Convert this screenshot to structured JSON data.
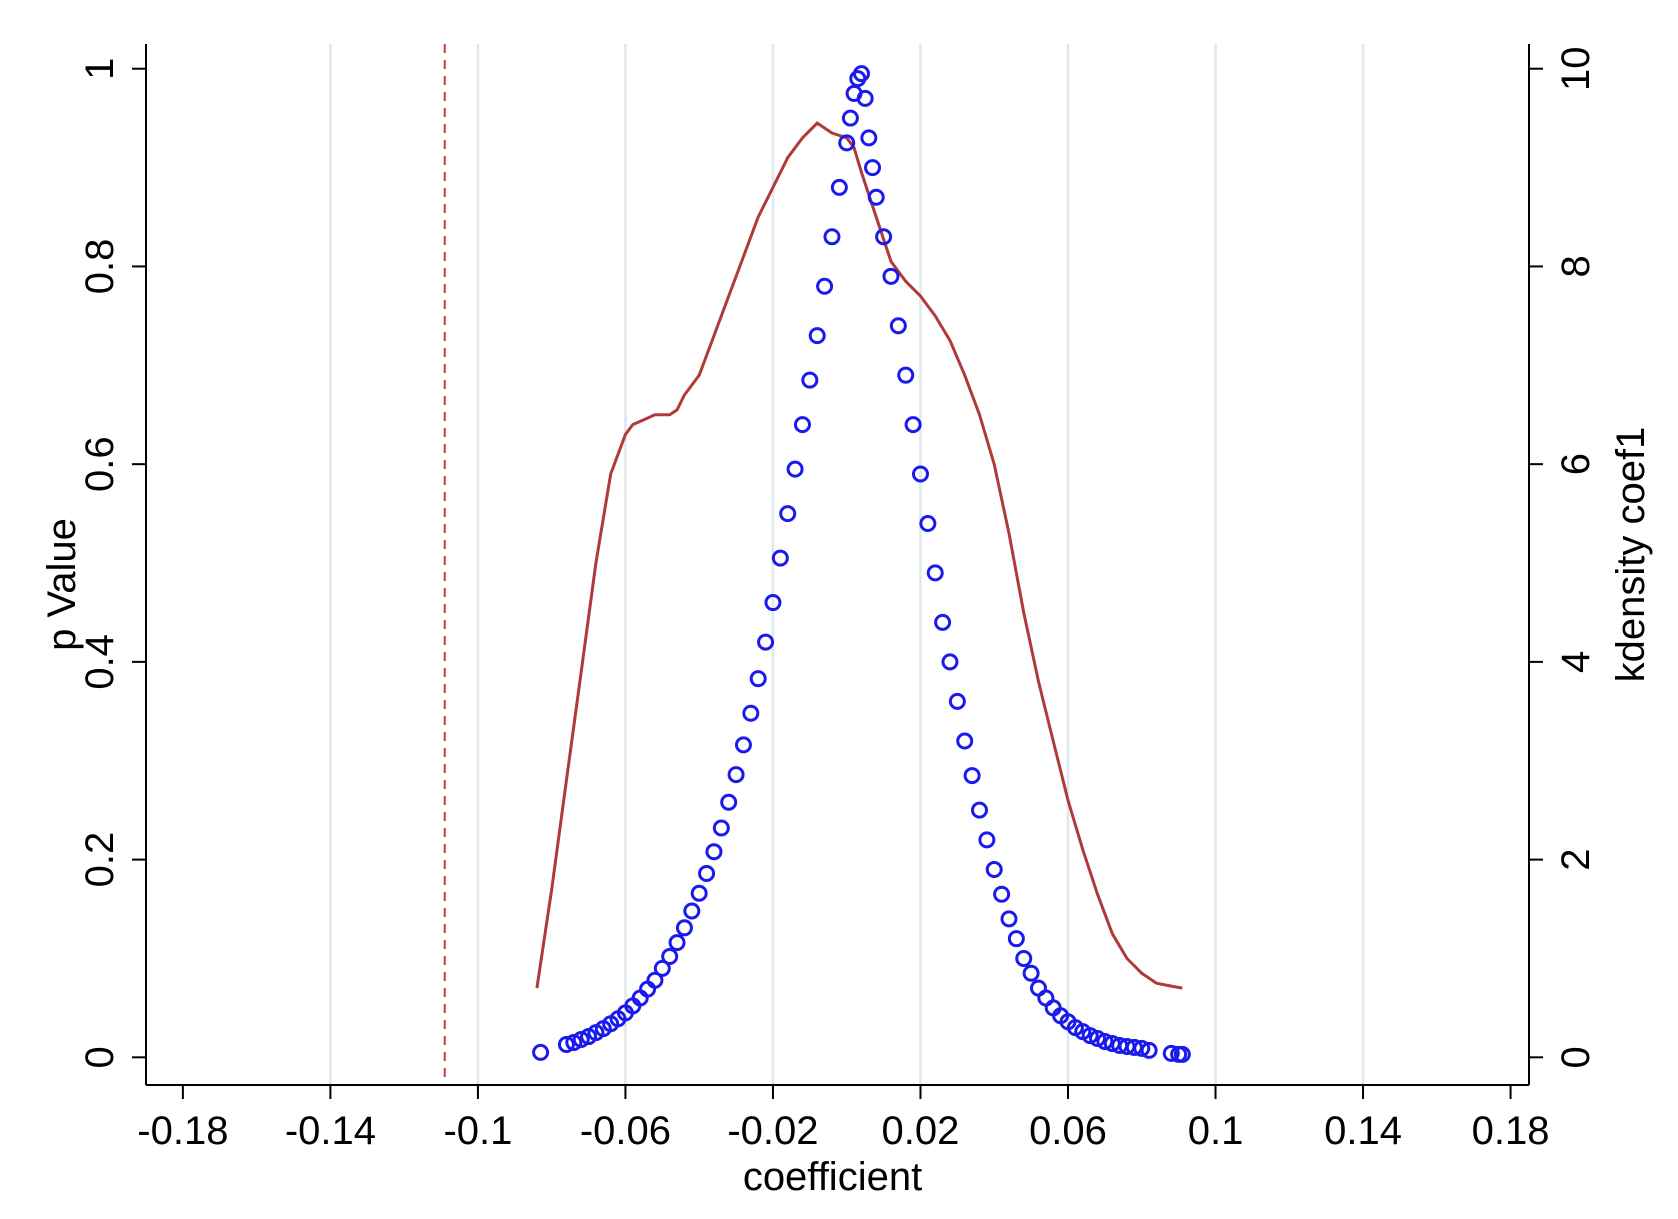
{
  "chart_data": {
    "type": "scatter",
    "xlabel": "coefficient",
    "ylabel": "p Value",
    "y2label": "kdensity coef1",
    "xlim": [
      -0.19,
      0.185
    ],
    "ylim": [
      -0.028,
      1.025
    ],
    "y2lim": [
      -0.28,
      10.25
    ],
    "x_ticks": [
      -0.18,
      -0.14,
      -0.1,
      -0.06,
      -0.02,
      0.02,
      0.06,
      0.1,
      0.14,
      0.18
    ],
    "x_tick_labels": [
      "-0.18",
      "-0.14",
      "-0.1",
      "-0.06",
      "-0.02",
      "0.02",
      "0.06",
      "0.1",
      "0.14",
      "0.18"
    ],
    "y_ticks": [
      0,
      0.2,
      0.4,
      0.6,
      0.8,
      1
    ],
    "y_tick_labels": [
      "0",
      "0.2",
      "0.4",
      "0.6",
      "0.8",
      "1"
    ],
    "y2_ticks": [
      0,
      2,
      4,
      6,
      8,
      10
    ],
    "y2_tick_labels": [
      "0",
      "2",
      "4",
      "6",
      "8",
      "10"
    ],
    "vertical_grid": true,
    "reference_line": {
      "x": -0.109,
      "style": "dashed",
      "color": "#e03030"
    },
    "series": [
      {
        "type": "scatter",
        "marker": "hollow-circle",
        "color": "#1a1aee",
        "points": [
          [
            -0.083,
            0.005
          ],
          [
            -0.076,
            0.013
          ],
          [
            -0.074,
            0.015
          ],
          [
            -0.072,
            0.018
          ],
          [
            -0.07,
            0.021
          ],
          [
            -0.068,
            0.025
          ],
          [
            -0.066,
            0.029
          ],
          [
            -0.064,
            0.034
          ],
          [
            -0.062,
            0.039
          ],
          [
            -0.06,
            0.045
          ],
          [
            -0.058,
            0.052
          ],
          [
            -0.056,
            0.06
          ],
          [
            -0.054,
            0.069
          ],
          [
            -0.052,
            0.078
          ],
          [
            -0.05,
            0.09
          ],
          [
            -0.048,
            0.102
          ],
          [
            -0.046,
            0.116
          ],
          [
            -0.044,
            0.131
          ],
          [
            -0.042,
            0.148
          ],
          [
            -0.04,
            0.166
          ],
          [
            -0.038,
            0.186
          ],
          [
            -0.036,
            0.208
          ],
          [
            -0.034,
            0.232
          ],
          [
            -0.032,
            0.258
          ],
          [
            -0.03,
            0.286
          ],
          [
            -0.028,
            0.316
          ],
          [
            -0.026,
            0.348
          ],
          [
            -0.024,
            0.383
          ],
          [
            -0.022,
            0.42
          ],
          [
            -0.02,
            0.46
          ],
          [
            -0.018,
            0.505
          ],
          [
            -0.016,
            0.55
          ],
          [
            -0.014,
            0.595
          ],
          [
            -0.012,
            0.64
          ],
          [
            -0.01,
            0.685
          ],
          [
            -0.008,
            0.73
          ],
          [
            -0.006,
            0.78
          ],
          [
            -0.004,
            0.83
          ],
          [
            -0.002,
            0.88
          ],
          [
            0.0,
            0.925
          ],
          [
            0.001,
            0.95
          ],
          [
            0.002,
            0.975
          ],
          [
            0.003,
            0.99
          ],
          [
            0.004,
            0.995
          ],
          [
            0.005,
            0.97
          ],
          [
            0.006,
            0.93
          ],
          [
            0.007,
            0.9
          ],
          [
            0.008,
            0.87
          ],
          [
            0.01,
            0.83
          ],
          [
            0.012,
            0.79
          ],
          [
            0.014,
            0.74
          ],
          [
            0.016,
            0.69
          ],
          [
            0.018,
            0.64
          ],
          [
            0.02,
            0.59
          ],
          [
            0.022,
            0.54
          ],
          [
            0.024,
            0.49
          ],
          [
            0.026,
            0.44
          ],
          [
            0.028,
            0.4
          ],
          [
            0.03,
            0.36
          ],
          [
            0.032,
            0.32
          ],
          [
            0.034,
            0.285
          ],
          [
            0.036,
            0.25
          ],
          [
            0.038,
            0.22
          ],
          [
            0.04,
            0.19
          ],
          [
            0.042,
            0.165
          ],
          [
            0.044,
            0.14
          ],
          [
            0.046,
            0.12
          ],
          [
            0.048,
            0.1
          ],
          [
            0.05,
            0.085
          ],
          [
            0.052,
            0.07
          ],
          [
            0.054,
            0.06
          ],
          [
            0.056,
            0.05
          ],
          [
            0.058,
            0.042
          ],
          [
            0.06,
            0.036
          ],
          [
            0.062,
            0.03
          ],
          [
            0.064,
            0.026
          ],
          [
            0.066,
            0.022
          ],
          [
            0.068,
            0.019
          ],
          [
            0.07,
            0.016
          ],
          [
            0.072,
            0.014
          ],
          [
            0.074,
            0.012
          ],
          [
            0.076,
            0.011
          ],
          [
            0.078,
            0.01
          ],
          [
            0.08,
            0.009
          ],
          [
            0.082,
            0.007
          ],
          [
            0.088,
            0.004
          ],
          [
            0.09,
            0.003
          ],
          [
            0.091,
            0.003
          ]
        ]
      },
      {
        "type": "line",
        "axis": "right",
        "color": "#b03a3a",
        "x": [
          -0.084,
          -0.08,
          -0.076,
          -0.072,
          -0.068,
          -0.064,
          -0.06,
          -0.058,
          -0.055,
          -0.052,
          -0.048,
          -0.046,
          -0.044,
          -0.042,
          -0.04,
          -0.036,
          -0.032,
          -0.028,
          -0.024,
          -0.02,
          -0.016,
          -0.012,
          -0.008,
          -0.004,
          0.0,
          0.002,
          0.004,
          0.008,
          0.012,
          0.016,
          0.02,
          0.024,
          0.028,
          0.032,
          0.036,
          0.04,
          0.044,
          0.048,
          0.052,
          0.056,
          0.06,
          0.064,
          0.068,
          0.072,
          0.076,
          0.08,
          0.084,
          0.088,
          0.091
        ],
        "y": [
          0.7,
          1.7,
          2.8,
          3.9,
          5.0,
          5.9,
          6.3,
          6.4,
          6.45,
          6.5,
          6.5,
          6.55,
          6.7,
          6.8,
          6.9,
          7.3,
          7.7,
          8.1,
          8.5,
          8.8,
          9.1,
          9.3,
          9.45,
          9.35,
          9.3,
          9.2,
          8.95,
          8.5,
          8.05,
          7.85,
          7.7,
          7.5,
          7.25,
          6.9,
          6.5,
          6.0,
          5.3,
          4.5,
          3.8,
          3.2,
          2.6,
          2.1,
          1.65,
          1.25,
          1.0,
          0.85,
          0.75,
          0.72,
          0.7
        ]
      }
    ]
  }
}
